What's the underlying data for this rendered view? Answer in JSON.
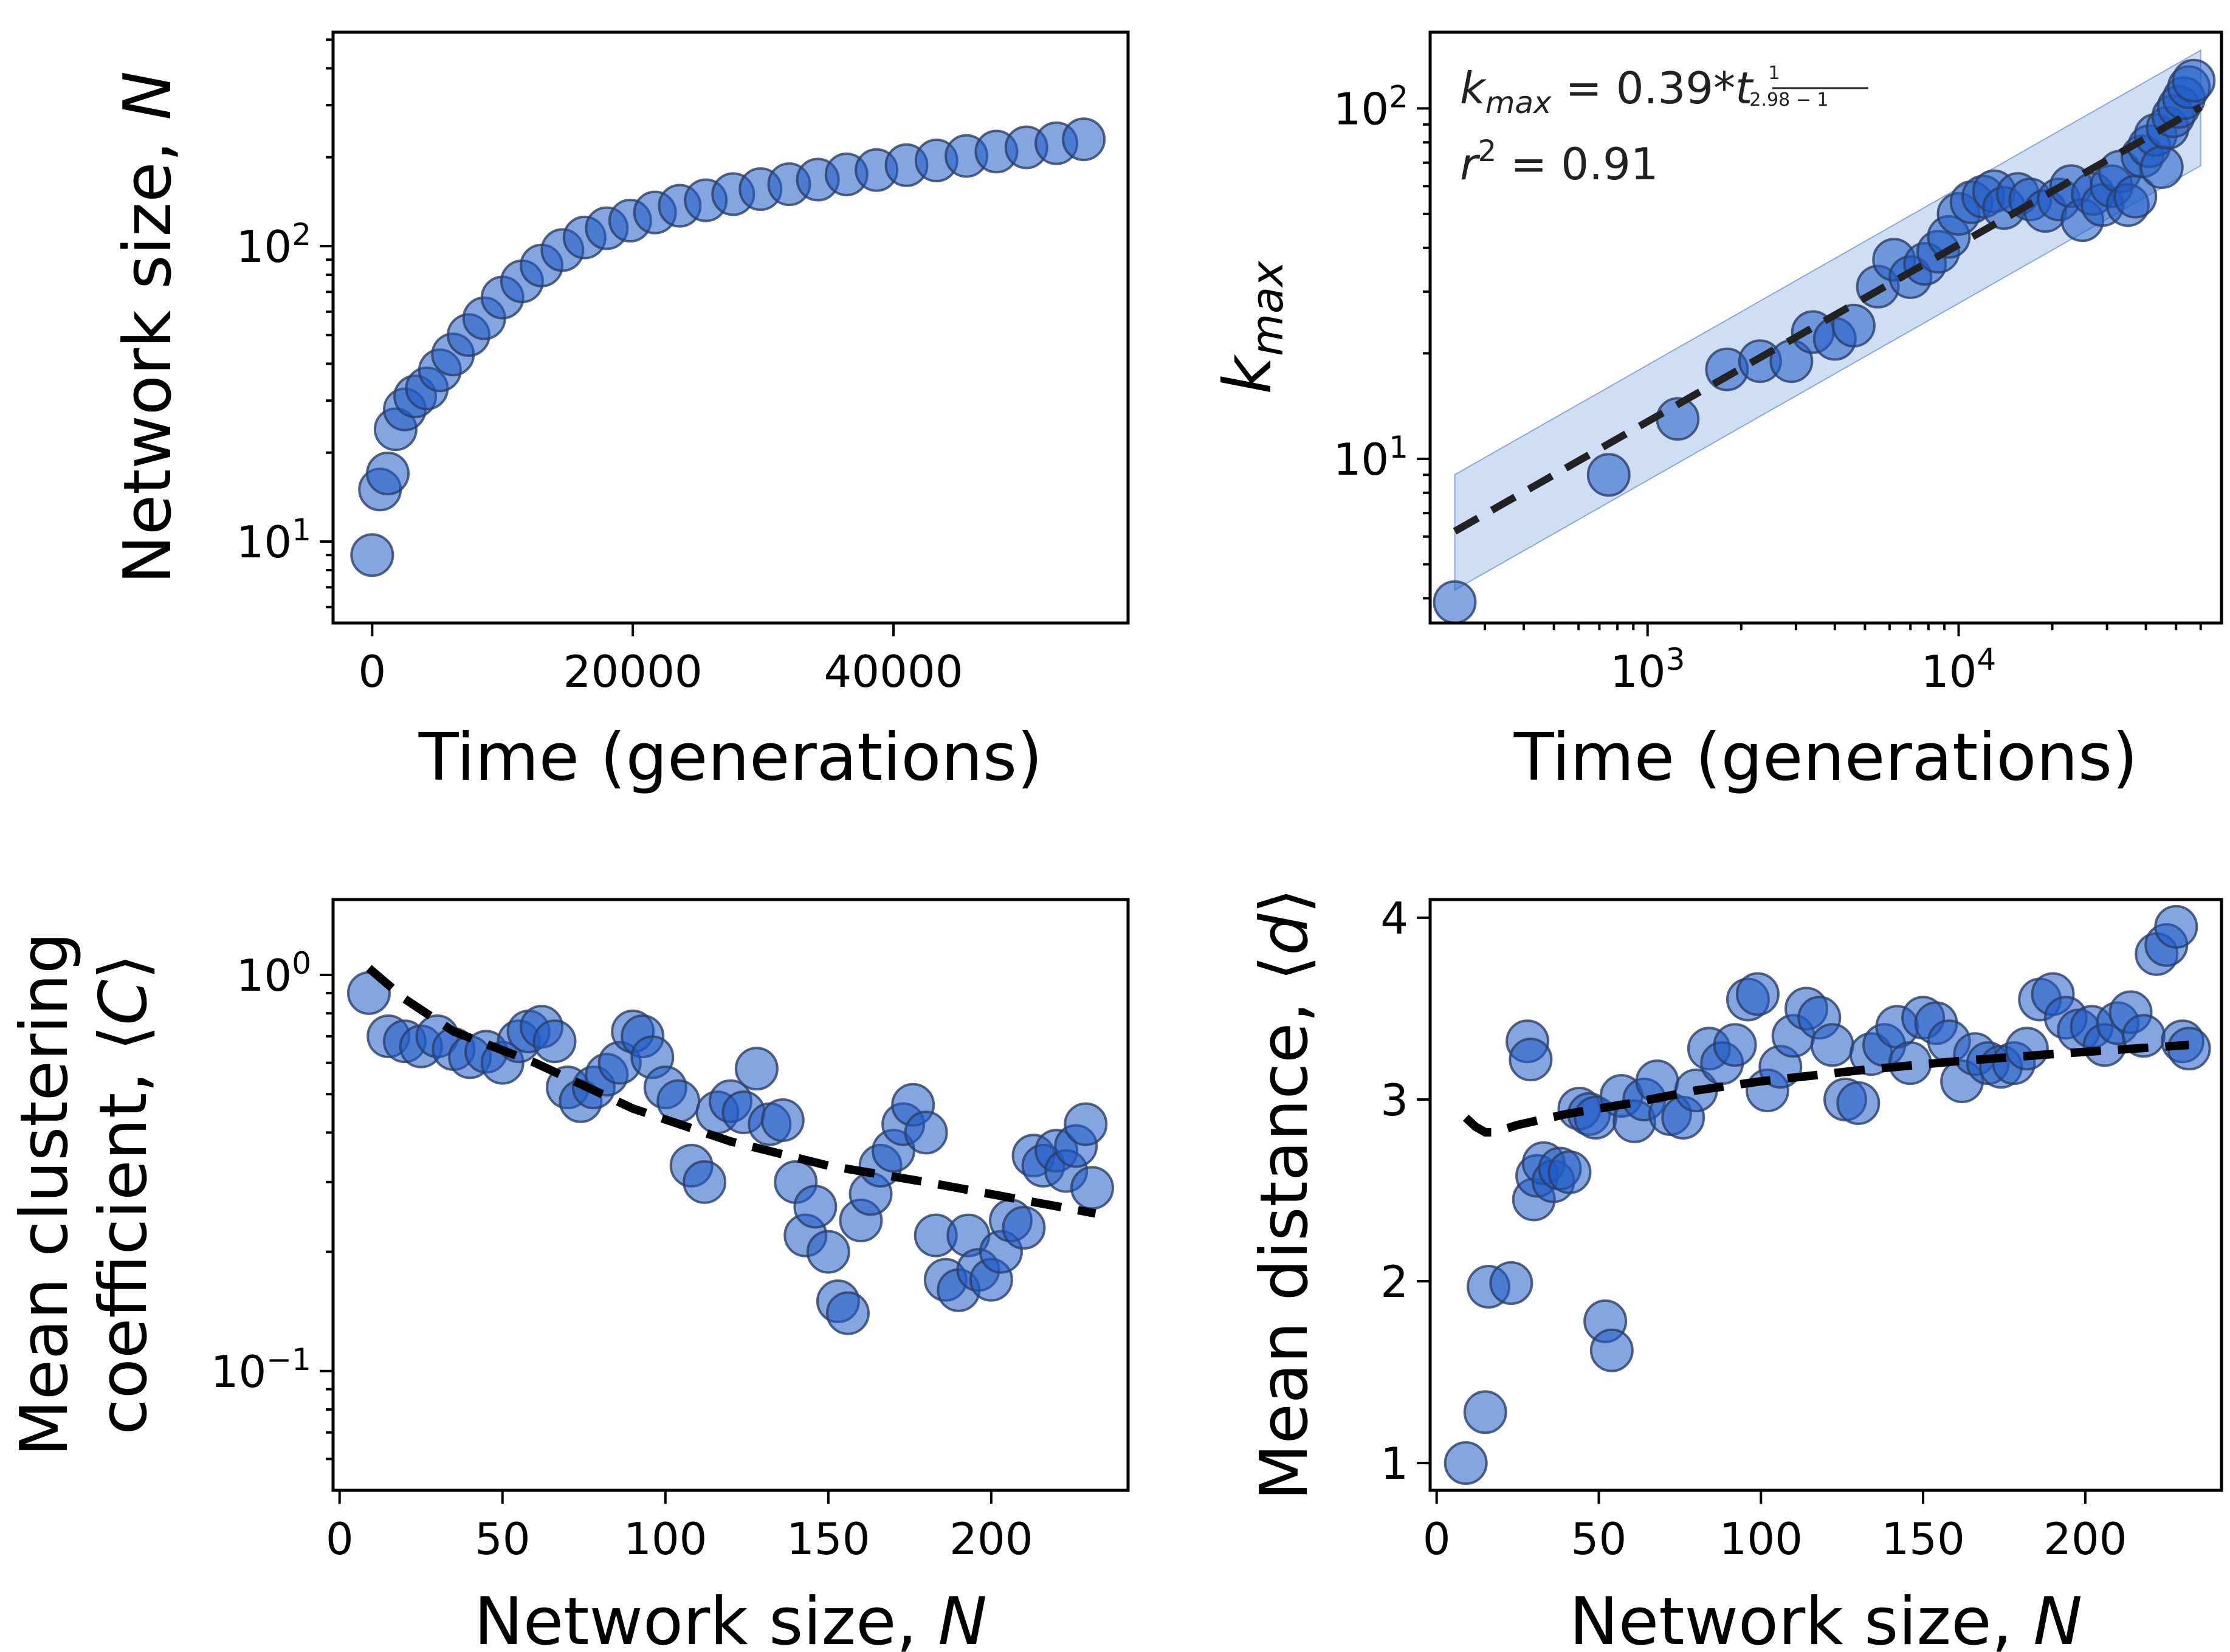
{
  "colors": {
    "marker": "#1f5bc6",
    "marker_edge": "#2b3f66",
    "band": "#a8c2ea",
    "fit_line": "#000000"
  },
  "chart_data": [
    {
      "type": "scatter",
      "id": "size-vs-time",
      "xlabel": "Time (generations)",
      "ylabel": "Network size, N",
      "xscale": "linear",
      "yscale": "log",
      "xlim": [
        -3000,
        58000
      ],
      "ylim": [
        5.3,
        530
      ],
      "xticks": [
        0,
        20000,
        40000
      ],
      "xticklabels": [
        "0",
        "20000",
        "40000"
      ],
      "yticks": [
        10,
        100
      ],
      "yticklabels": [
        "10^1",
        "10^2"
      ],
      "x": [
        0,
        600,
        1200,
        1800,
        2500,
        3300,
        4200,
        5200,
        6200,
        7400,
        8600,
        10000,
        11500,
        13000,
        14600,
        16300,
        18000,
        19800,
        21700,
        23600,
        25600,
        27700,
        29800,
        32000,
        34200,
        36400,
        38700,
        41000,
        43300,
        45600,
        47900,
        50200,
        52500,
        54600
      ],
      "y": [
        9,
        15,
        17,
        24,
        28,
        31,
        33,
        38,
        43,
        50,
        57,
        67,
        76,
        86,
        97,
        107,
        115,
        122,
        130,
        137,
        143,
        150,
        156,
        162,
        168,
        175,
        181,
        188,
        195,
        202,
        209,
        216,
        223,
        230
      ]
    },
    {
      "type": "scatter",
      "id": "kmax-vs-time",
      "xlabel": "Time (generations)",
      "ylabel": "k_max",
      "xscale": "log",
      "yscale": "log",
      "xlim": [
        200,
        70000
      ],
      "ylim": [
        3.4,
        165
      ],
      "xticks": [
        1000,
        10000
      ],
      "xticklabels": [
        "10^3",
        "10^4"
      ],
      "yticks": [
        10,
        100
      ],
      "yticklabels": [
        "10^1",
        "10^2"
      ],
      "annotation": {
        "formula": "k_max = 0.39*t^(1/(2.98-1))",
        "r2": "r² = 0.91"
      },
      "fit": {
        "a": 0.39,
        "gamma": 2.98,
        "x_range": [
          240,
          60000
        ]
      },
      "band": {
        "lower_factor": 0.68,
        "upper_factor": 1.45
      },
      "x": [
        240,
        750,
        1250,
        1800,
        2300,
        2900,
        3400,
        4000,
        4600,
        5500,
        6200,
        7000,
        7800,
        8600,
        9300,
        10000,
        11000,
        12000,
        13000,
        14000,
        15500,
        17000,
        19000,
        21000,
        23000,
        25000,
        27000,
        29000,
        31000,
        33000,
        35000,
        37000,
        39000,
        41000,
        43000,
        45000,
        47000,
        49000,
        51000,
        53000,
        55000,
        57000
      ],
      "y": [
        3.9,
        9,
        13,
        18,
        19,
        19,
        23,
        22,
        24,
        31,
        37,
        33,
        36,
        39,
        43,
        50,
        54,
        56,
        58,
        52,
        57,
        55,
        51,
        55,
        60,
        48,
        57,
        53,
        60,
        66,
        53,
        56,
        73,
        78,
        84,
        68,
        88,
        95,
        101,
        107,
        115,
        120
      ]
    },
    {
      "type": "scatter",
      "id": "clustering-vs-size",
      "xlabel": "Network size, N",
      "ylabel": "Mean clustering coefficient, ⟨C⟩",
      "xscale": "linear",
      "yscale": "log",
      "xlim": [
        -2,
        242
      ],
      "ylim": [
        0.05,
        1.55
      ],
      "xticks": [
        0,
        50,
        100,
        150,
        200
      ],
      "xticklabels": [
        "0",
        "50",
        "100",
        "150",
        "200"
      ],
      "yticks": [
        0.1,
        1.0
      ],
      "yticklabels": [
        "10^-1",
        "10^0"
      ],
      "fit_line": {
        "x": [
          9,
          20,
          35,
          60,
          90,
          120,
          150,
          180,
          210,
          232
        ],
        "y": [
          1.04,
          0.87,
          0.72,
          0.6,
          0.46,
          0.38,
          0.33,
          0.3,
          0.27,
          0.25
        ]
      },
      "x": [
        9,
        15,
        20,
        25,
        30,
        35,
        40,
        45,
        50,
        55,
        58,
        62,
        66,
        70,
        74,
        78,
        82,
        86,
        90,
        93,
        96,
        100,
        104,
        108,
        112,
        116,
        120,
        124,
        128,
        132,
        136,
        140,
        143,
        146,
        150,
        153,
        156,
        160,
        163,
        166,
        170,
        173,
        176,
        180,
        183,
        186,
        190,
        193,
        196,
        200,
        203,
        206,
        210,
        213,
        216,
        220,
        223,
        226,
        229,
        231
      ],
      "y": [
        0.9,
        0.7,
        0.68,
        0.66,
        0.7,
        0.65,
        0.62,
        0.64,
        0.6,
        0.68,
        0.72,
        0.74,
        0.68,
        0.52,
        0.48,
        0.52,
        0.56,
        0.6,
        0.72,
        0.7,
        0.62,
        0.52,
        0.48,
        0.33,
        0.3,
        0.45,
        0.48,
        0.45,
        0.58,
        0.42,
        0.43,
        0.3,
        0.22,
        0.26,
        0.2,
        0.15,
        0.14,
        0.24,
        0.28,
        0.33,
        0.36,
        0.42,
        0.47,
        0.4,
        0.22,
        0.17,
        0.16,
        0.22,
        0.18,
        0.17,
        0.2,
        0.24,
        0.23,
        0.35,
        0.33,
        0.36,
        0.32,
        0.37,
        0.42,
        0.29
      ]
    },
    {
      "type": "scatter",
      "id": "distance-vs-size",
      "xlabel": "Network size, N",
      "ylabel": "Mean distance, ⟨d⟩",
      "xscale": "linear",
      "yscale": "linear",
      "xlim": [
        -2,
        242
      ],
      "ylim": [
        0.85,
        4.1
      ],
      "xticks": [
        0,
        50,
        100,
        150,
        200
      ],
      "xticklabels": [
        "0",
        "50",
        "100",
        "150",
        "200"
      ],
      "yticks": [
        1,
        2,
        3,
        4
      ],
      "yticklabels": [
        "1",
        "2",
        "3",
        "4"
      ],
      "fit_line": {
        "x": [
          9,
          12,
          15,
          18,
          25,
          40,
          60,
          80,
          100,
          130,
          160,
          190,
          215,
          232
        ],
        "y": [
          2.9,
          2.85,
          2.82,
          2.82,
          2.86,
          2.92,
          2.98,
          3.05,
          3.1,
          3.16,
          3.21,
          3.25,
          3.28,
          3.3
        ]
      },
      "x": [
        9,
        15,
        16,
        23,
        28,
        29,
        30,
        31,
        33,
        36,
        38,
        41,
        44,
        47,
        49,
        52,
        54,
        57,
        61,
        64,
        68,
        72,
        76,
        80,
        84,
        88,
        92,
        96,
        99,
        102,
        106,
        110,
        114,
        118,
        122,
        126,
        130,
        134,
        138,
        142,
        146,
        150,
        154,
        158,
        162,
        166,
        170,
        174,
        178,
        182,
        186,
        190,
        194,
        198,
        202,
        206,
        210,
        214,
        218,
        222,
        225,
        228,
        230,
        232
      ],
      "y": [
        1.0,
        1.28,
        1.97,
        1.99,
        3.32,
        3.22,
        2.45,
        2.58,
        2.65,
        2.55,
        2.62,
        2.6,
        2.95,
        2.92,
        2.9,
        1.78,
        1.62,
        3.02,
        2.88,
        3.0,
        3.1,
        2.92,
        2.9,
        3.05,
        3.28,
        3.2,
        3.3,
        3.55,
        3.58,
        3.05,
        3.18,
        3.35,
        3.5,
        3.45,
        3.3,
        3.0,
        2.98,
        3.25,
        3.3,
        3.4,
        3.2,
        3.45,
        3.42,
        3.32,
        3.1,
        3.25,
        3.2,
        3.18,
        3.2,
        3.28,
        3.55,
        3.58,
        3.45,
        3.38,
        3.4,
        3.3,
        3.42,
        3.48,
        3.35,
        3.8,
        3.85,
        3.95,
        3.32,
        3.28
      ]
    }
  ]
}
